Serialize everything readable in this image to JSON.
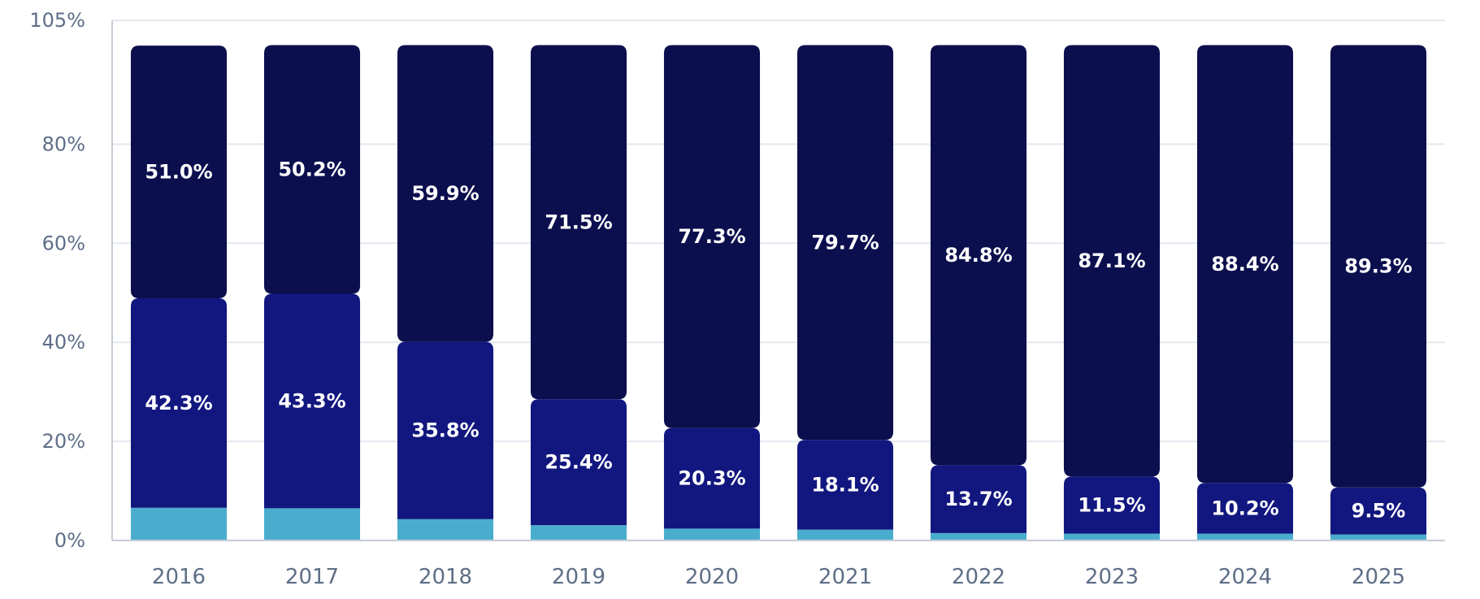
{
  "chart_data": {
    "type": "bar",
    "stacked": true,
    "categories": [
      "2016",
      "2017",
      "2018",
      "2019",
      "2020",
      "2021",
      "2022",
      "2023",
      "2024",
      "2025"
    ],
    "series": [
      {
        "values": [
          6.6,
          6.5,
          4.3,
          3.1,
          2.4,
          2.2,
          1.5,
          1.4,
          1.4,
          1.2
        ],
        "labels": [
          "",
          "",
          "",
          "",
          "",
          "",
          "",
          "",
          "",
          ""
        ]
      },
      {
        "values": [
          42.3,
          43.3,
          35.8,
          25.4,
          20.3,
          18.1,
          13.7,
          11.5,
          10.2,
          9.5
        ],
        "labels": [
          "42.3%",
          "43.3%",
          "35.8%",
          "25.4%",
          "20.3%",
          "18.1%",
          "13.7%",
          "11.5%",
          "10.2%",
          "9.5%"
        ]
      },
      {
        "values": [
          51.0,
          50.2,
          59.9,
          71.5,
          77.3,
          79.7,
          84.8,
          87.1,
          88.4,
          89.3
        ],
        "labels": [
          "51.0%",
          "50.2%",
          "59.9%",
          "71.5%",
          "77.3%",
          "79.7%",
          "84.8%",
          "87.1%",
          "88.4%",
          "89.3%"
        ]
      }
    ],
    "colors": [
      "#4aadcd",
      "#12177f",
      "#0b0f4e"
    ],
    "y_ticks": [
      0,
      20,
      40,
      60,
      80,
      105
    ],
    "y_tick_labels": [
      "0%",
      "20%",
      "40%",
      "60%",
      "80%",
      "105%"
    ],
    "ylim": [
      0,
      105
    ],
    "grid": true,
    "title": "",
    "xlabel": "",
    "ylabel": ""
  }
}
